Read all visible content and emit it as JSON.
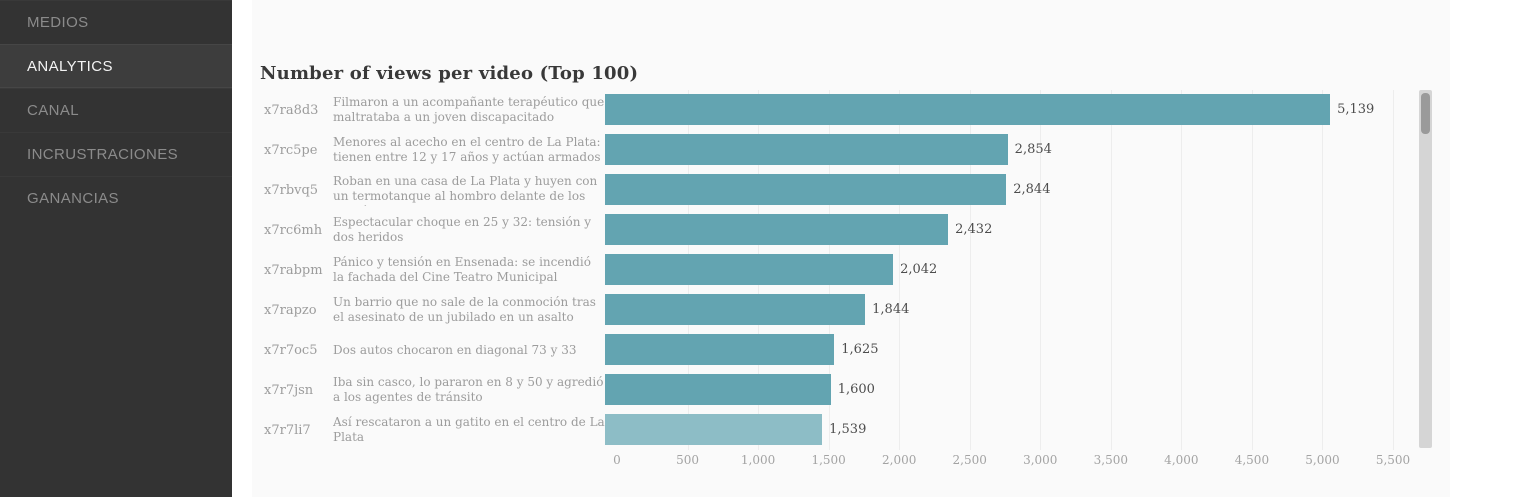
{
  "sidebar": {
    "items": [
      {
        "label": "MEDIOS",
        "active": false
      },
      {
        "label": "ANALYTICS",
        "active": true
      },
      {
        "label": "CANAL",
        "active": false
      },
      {
        "label": "INCRUSTRACIONES",
        "active": false
      },
      {
        "label": "GANANCIAS",
        "active": false
      }
    ]
  },
  "main": {
    "title": "Number of views per video (Top 100)"
  },
  "colors": {
    "bar": "#63a4b1",
    "bar_highlight": "#8dbdc6",
    "sidebar_bg": "#333333",
    "sidebar_active_bg": "#3d3d3d",
    "panel_bg": "#fafafa"
  },
  "chart_data": {
    "type": "bar",
    "orientation": "horizontal",
    "title": "Number of views per video (Top 100)",
    "xlim": [
      0,
      5500
    ],
    "grid": true,
    "x_axis": {
      "tick_labels": [
        "0",
        "500",
        "1,000",
        "1,500",
        "2,000",
        "2,500",
        "3,000",
        "3,500",
        "4,000",
        "4,500",
        "5,000",
        "5,500"
      ],
      "tick_values": [
        0,
        500,
        1000,
        1500,
        2000,
        2500,
        3000,
        3500,
        4000,
        4500,
        5000,
        5500
      ]
    },
    "rows": [
      {
        "id": "x7ra8d3",
        "label": "Filmaron a un acompañante terapéutico que maltrataba a un joven discapacitado",
        "value": 5139,
        "value_label": "5,139",
        "highlighted": false
      },
      {
        "id": "x7rc5pe",
        "label": "Menores al acecho en el centro de La Plata: tienen entre 12 y 17 años y actúan armados",
        "value": 2854,
        "value_label": "2,854",
        "highlighted": false
      },
      {
        "id": "x7rbvq5",
        "label": "Roban en una casa de La Plata y huyen con un termotanque al hombro delante de los policías",
        "value": 2844,
        "value_label": "2,844",
        "highlighted": false
      },
      {
        "id": "x7rc6mh",
        "label": "Espectacular choque en 25 y 32: tensión y dos heridos",
        "value": 2432,
        "value_label": "2,432",
        "highlighted": false
      },
      {
        "id": "x7rabpm",
        "label": "Pánico y tensión en Ensenada: se incendió la fachada del Cine Teatro Municipal",
        "value": 2042,
        "value_label": "2,042",
        "highlighted": false
      },
      {
        "id": "x7rapzo",
        "label": "Un barrio que no sale de la conmoción tras el asesinato de un jubilado en un asalto",
        "value": 1844,
        "value_label": "1,844",
        "highlighted": false
      },
      {
        "id": "x7r7oc5",
        "label": "Dos autos chocaron en diagonal 73 y 33",
        "value": 1625,
        "value_label": "1,625",
        "highlighted": false
      },
      {
        "id": "x7r7jsn",
        "label": "Iba sin casco, lo pararon en 8 y 50 y agredió a los agentes de tránsito",
        "value": 1600,
        "value_label": "1,600",
        "highlighted": false
      },
      {
        "id": "x7r7li7",
        "label": "Así rescataron a un gatito en el centro de La Plata",
        "value": 1539,
        "value_label": "1,539",
        "highlighted": true
      }
    ]
  }
}
